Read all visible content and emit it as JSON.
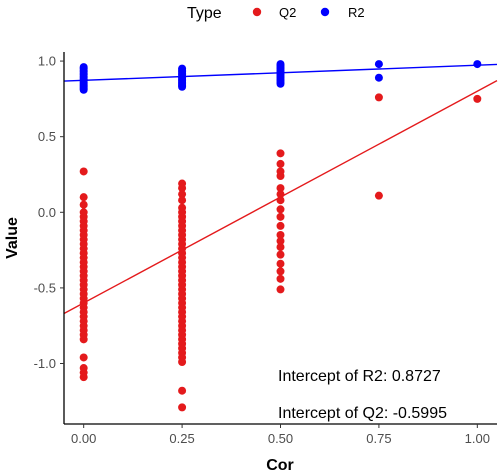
{
  "chart_data": {
    "type": "scatter",
    "xlabel": "Cor",
    "ylabel": "Value",
    "xlim": [
      -0.05,
      1.05
    ],
    "ylim": [
      -1.4,
      1.06
    ],
    "x_ticks": [
      0.0,
      0.25,
      0.5,
      0.75,
      1.0
    ],
    "x_tick_labels": [
      "0.00",
      "0.25",
      "0.50",
      "0.75",
      "1.00"
    ],
    "y_ticks": [
      -1.0,
      -0.5,
      0.0,
      0.5,
      1.0
    ],
    "y_tick_labels": [
      "-1.0",
      "-0.5",
      "0.0",
      "0.5",
      "1.0"
    ],
    "grid": false,
    "legend": {
      "title": "Type",
      "position": "top",
      "entries": [
        {
          "label": "Q2",
          "color": "#e41a1c"
        },
        {
          "label": "R2",
          "color": "#0000ff"
        }
      ]
    },
    "series": [
      {
        "name": "Q2",
        "color": "#e41a1c",
        "points": [
          [
            0.0,
            0.27
          ],
          [
            0.0,
            0.1
          ],
          [
            0.0,
            0.05
          ],
          [
            0.0,
            0.0
          ],
          [
            0.0,
            -0.03
          ],
          [
            0.0,
            -0.06
          ],
          [
            0.0,
            -0.09
          ],
          [
            0.0,
            -0.12
          ],
          [
            0.0,
            -0.15
          ],
          [
            0.0,
            -0.18
          ],
          [
            0.0,
            -0.21
          ],
          [
            0.0,
            -0.24
          ],
          [
            0.0,
            -0.27
          ],
          [
            0.0,
            -0.3
          ],
          [
            0.0,
            -0.33
          ],
          [
            0.0,
            -0.36
          ],
          [
            0.0,
            -0.39
          ],
          [
            0.0,
            -0.42
          ],
          [
            0.0,
            -0.45
          ],
          [
            0.0,
            -0.48
          ],
          [
            0.0,
            -0.51
          ],
          [
            0.0,
            -0.54
          ],
          [
            0.0,
            -0.57
          ],
          [
            0.0,
            -0.6
          ],
          [
            0.0,
            -0.63
          ],
          [
            0.0,
            -0.66
          ],
          [
            0.0,
            -0.69
          ],
          [
            0.0,
            -0.72
          ],
          [
            0.0,
            -0.75
          ],
          [
            0.0,
            -0.78
          ],
          [
            0.0,
            -0.81
          ],
          [
            0.0,
            -0.84
          ],
          [
            0.0,
            -0.96
          ],
          [
            0.0,
            -1.03
          ],
          [
            0.0,
            -1.06
          ],
          [
            0.0,
            -1.09
          ],
          [
            0.25,
            0.19
          ],
          [
            0.25,
            0.16
          ],
          [
            0.25,
            0.12
          ],
          [
            0.25,
            0.08
          ],
          [
            0.25,
            0.03
          ],
          [
            0.25,
            0.0
          ],
          [
            0.25,
            -0.03
          ],
          [
            0.25,
            -0.06
          ],
          [
            0.25,
            -0.09
          ],
          [
            0.25,
            -0.12
          ],
          [
            0.25,
            -0.15
          ],
          [
            0.25,
            -0.18
          ],
          [
            0.25,
            -0.21
          ],
          [
            0.25,
            -0.24
          ],
          [
            0.25,
            -0.27
          ],
          [
            0.25,
            -0.3
          ],
          [
            0.25,
            -0.33
          ],
          [
            0.25,
            -0.36
          ],
          [
            0.25,
            -0.39
          ],
          [
            0.25,
            -0.42
          ],
          [
            0.25,
            -0.45
          ],
          [
            0.25,
            -0.48
          ],
          [
            0.25,
            -0.51
          ],
          [
            0.25,
            -0.54
          ],
          [
            0.25,
            -0.57
          ],
          [
            0.25,
            -0.6
          ],
          [
            0.25,
            -0.63
          ],
          [
            0.25,
            -0.66
          ],
          [
            0.25,
            -0.69
          ],
          [
            0.25,
            -0.72
          ],
          [
            0.25,
            -0.75
          ],
          [
            0.25,
            -0.78
          ],
          [
            0.25,
            -0.81
          ],
          [
            0.25,
            -0.84
          ],
          [
            0.25,
            -0.87
          ],
          [
            0.25,
            -0.9
          ],
          [
            0.25,
            -0.93
          ],
          [
            0.25,
            -0.96
          ],
          [
            0.25,
            -0.99
          ],
          [
            0.25,
            -1.18
          ],
          [
            0.25,
            -1.29
          ],
          [
            0.5,
            0.39
          ],
          [
            0.5,
            0.32
          ],
          [
            0.5,
            0.27
          ],
          [
            0.5,
            0.24
          ],
          [
            0.5,
            0.16
          ],
          [
            0.5,
            0.12
          ],
          [
            0.5,
            0.08
          ],
          [
            0.5,
            0.02
          ],
          [
            0.5,
            -0.03
          ],
          [
            0.5,
            -0.09
          ],
          [
            0.5,
            -0.15
          ],
          [
            0.5,
            -0.19
          ],
          [
            0.5,
            -0.23
          ],
          [
            0.5,
            -0.28
          ],
          [
            0.5,
            -0.34
          ],
          [
            0.5,
            -0.39
          ],
          [
            0.5,
            -0.44
          ],
          [
            0.5,
            -0.51
          ],
          [
            0.75,
            0.76
          ],
          [
            0.75,
            0.11
          ],
          [
            1.0,
            0.75
          ]
        ],
        "trend": {
          "intercept": -0.5995,
          "slope": 1.4
        }
      },
      {
        "name": "R2",
        "color": "#0000ff",
        "points": [
          [
            0.0,
            0.96
          ],
          [
            0.0,
            0.95
          ],
          [
            0.0,
            0.94
          ],
          [
            0.0,
            0.93
          ],
          [
            0.0,
            0.92
          ],
          [
            0.0,
            0.91
          ],
          [
            0.0,
            0.9
          ],
          [
            0.0,
            0.89
          ],
          [
            0.0,
            0.88
          ],
          [
            0.0,
            0.87
          ],
          [
            0.0,
            0.86
          ],
          [
            0.0,
            0.85
          ],
          [
            0.0,
            0.84
          ],
          [
            0.0,
            0.83
          ],
          [
            0.0,
            0.82
          ],
          [
            0.0,
            0.81
          ],
          [
            0.25,
            0.95
          ],
          [
            0.25,
            0.94
          ],
          [
            0.25,
            0.93
          ],
          [
            0.25,
            0.92
          ],
          [
            0.25,
            0.91
          ],
          [
            0.25,
            0.9
          ],
          [
            0.25,
            0.89
          ],
          [
            0.25,
            0.88
          ],
          [
            0.25,
            0.87
          ],
          [
            0.25,
            0.86
          ],
          [
            0.25,
            0.85
          ],
          [
            0.25,
            0.84
          ],
          [
            0.25,
            0.83
          ],
          [
            0.5,
            0.98
          ],
          [
            0.5,
            0.97
          ],
          [
            0.5,
            0.96
          ],
          [
            0.5,
            0.95
          ],
          [
            0.5,
            0.94
          ],
          [
            0.5,
            0.93
          ],
          [
            0.5,
            0.92
          ],
          [
            0.5,
            0.91
          ],
          [
            0.5,
            0.9
          ],
          [
            0.5,
            0.89
          ],
          [
            0.5,
            0.88
          ],
          [
            0.5,
            0.87
          ],
          [
            0.5,
            0.86
          ],
          [
            0.5,
            0.85
          ],
          [
            0.75,
            0.98
          ],
          [
            0.75,
            0.89
          ],
          [
            1.0,
            0.98
          ]
        ],
        "trend": {
          "intercept": 0.8727,
          "slope": 0.1
        }
      }
    ],
    "annotations": [
      "Intercept of R2: 0.8727",
      "Intercept of Q2: -0.5995"
    ]
  }
}
